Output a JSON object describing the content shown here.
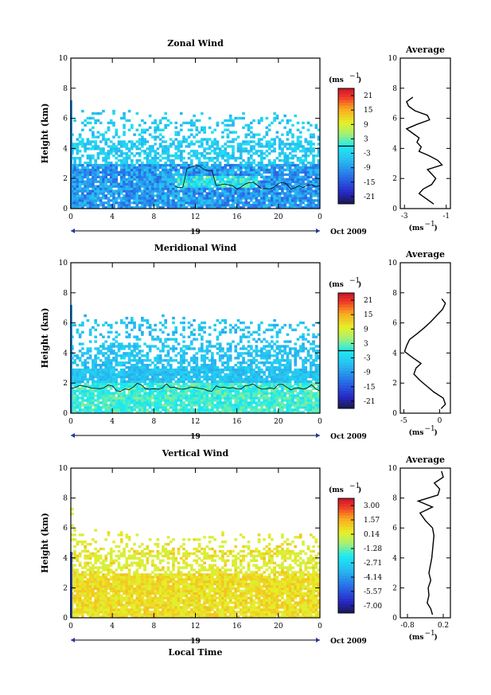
{
  "figure": {
    "date_label": "Oct 2009",
    "day_label": "19",
    "xlabel": "Local Time",
    "ylabel": "Height (km)",
    "unit_label": "(ms",
    "unit_sup": "−1",
    "avg_title": "Average"
  },
  "chart_data": [
    {
      "type": "heatmap",
      "title": "Zonal Wind",
      "xlabel": "",
      "ylabel": "Height (km)",
      "x_ticks": [
        "0",
        "4",
        "8",
        "12",
        "16",
        "20",
        "0"
      ],
      "y_ticks": [
        "0",
        "2",
        "4",
        "6",
        "8",
        "10"
      ],
      "xlim": [
        0,
        24
      ],
      "ylim": [
        0,
        10
      ],
      "colorbar": {
        "unit": "(ms⁻¹)",
        "tick_labels": [
          "21",
          "15",
          "9",
          "3",
          "-3",
          "-9",
          "-15",
          "-21"
        ],
        "range": [
          -24,
          24
        ],
        "zero_contour": true
      },
      "mean_profile": {
        "title": "Average",
        "x_ticks": [
          "-3",
          "-1"
        ],
        "xlim": [
          -3.2,
          -0.8
        ],
        "heights": [
          0.3,
          0.8,
          1.0,
          1.3,
          1.6,
          2.0,
          2.3,
          2.6,
          2.9,
          3.2,
          3.5,
          3.8,
          4.1,
          4.4,
          4.7,
          5.0,
          5.3,
          5.6,
          5.9,
          6.2,
          6.5,
          6.8,
          7.1,
          7.4
        ],
        "values": [
          -1.6,
          -2.1,
          -2.3,
          -2.1,
          -1.7,
          -1.5,
          -1.7,
          -1.9,
          -1.2,
          -1.4,
          -1.8,
          -2.3,
          -2.2,
          -2.4,
          -2.3,
          -2.6,
          -2.9,
          -2.4,
          -1.8,
          -1.9,
          -2.5,
          -2.8,
          -2.9,
          -2.6
        ]
      }
    },
    {
      "type": "heatmap",
      "title": "Meridional Wind",
      "xlabel": "",
      "ylabel": "Height (km)",
      "x_ticks": [
        "0",
        "4",
        "8",
        "12",
        "16",
        "20",
        "0"
      ],
      "y_ticks": [
        "0",
        "2",
        "4",
        "6",
        "8",
        "10"
      ],
      "xlim": [
        0,
        24
      ],
      "ylim": [
        0,
        10
      ],
      "colorbar": {
        "unit": "(ms⁻¹)",
        "tick_labels": [
          "21",
          "15",
          "9",
          "3",
          "-3",
          "-9",
          "-15",
          "-21"
        ],
        "range": [
          -24,
          24
        ],
        "zero_contour": true
      },
      "mean_profile": {
        "title": "Average",
        "x_ticks": [
          "-5",
          "0"
        ],
        "xlim": [
          -5.5,
          1.5
        ],
        "heights": [
          0.3,
          0.6,
          1.0,
          1.4,
          1.8,
          2.2,
          2.6,
          3.0,
          3.3,
          3.7,
          4.1,
          4.5,
          4.9,
          5.3,
          5.7,
          6.1,
          6.5,
          6.9,
          7.3,
          7.6
        ],
        "values": [
          0.2,
          0.8,
          0.5,
          -0.8,
          -1.8,
          -2.8,
          -3.6,
          -3.3,
          -2.6,
          -3.8,
          -4.9,
          -4.6,
          -4.2,
          -3.1,
          -2.1,
          -1.2,
          -0.4,
          0.4,
          0.8,
          0.3
        ]
      }
    },
    {
      "type": "heatmap",
      "title": "Vertical Wind",
      "xlabel": "Local Time",
      "ylabel": "Height (km)",
      "x_ticks": [
        "0",
        "4",
        "8",
        "12",
        "16",
        "20",
        "0"
      ],
      "y_ticks": [
        "0",
        "2",
        "4",
        "6",
        "8",
        "10"
      ],
      "xlim": [
        0,
        24
      ],
      "ylim": [
        0,
        10
      ],
      "colorbar": {
        "unit": "(ms⁻¹)",
        "tick_labels": [
          "3.00",
          "1.57",
          "0.14",
          "-1.28",
          "-2.71",
          "-4.14",
          "-5.57",
          "-7.00"
        ],
        "range": [
          -7.7,
          3.7
        ],
        "zero_contour": false
      },
      "mean_profile": {
        "title": "Average",
        "x_ticks": [
          "-0.8",
          "0.2"
        ],
        "xlim": [
          -1.0,
          0.4
        ],
        "heights": [
          0.2,
          0.6,
          1.0,
          1.5,
          2.0,
          2.5,
          3.0,
          3.5,
          4.0,
          4.5,
          5.0,
          5.5,
          6.0,
          6.5,
          7.0,
          7.4,
          7.8,
          8.2,
          8.6,
          9.0,
          9.4,
          9.8
        ],
        "values": [
          -0.1,
          -0.15,
          -0.25,
          -0.2,
          -0.22,
          -0.15,
          -0.2,
          -0.16,
          -0.12,
          -0.1,
          -0.08,
          -0.06,
          -0.1,
          -0.3,
          -0.45,
          -0.1,
          -0.5,
          0.05,
          0.1,
          -0.05,
          0.2,
          0.15
        ]
      }
    }
  ]
}
